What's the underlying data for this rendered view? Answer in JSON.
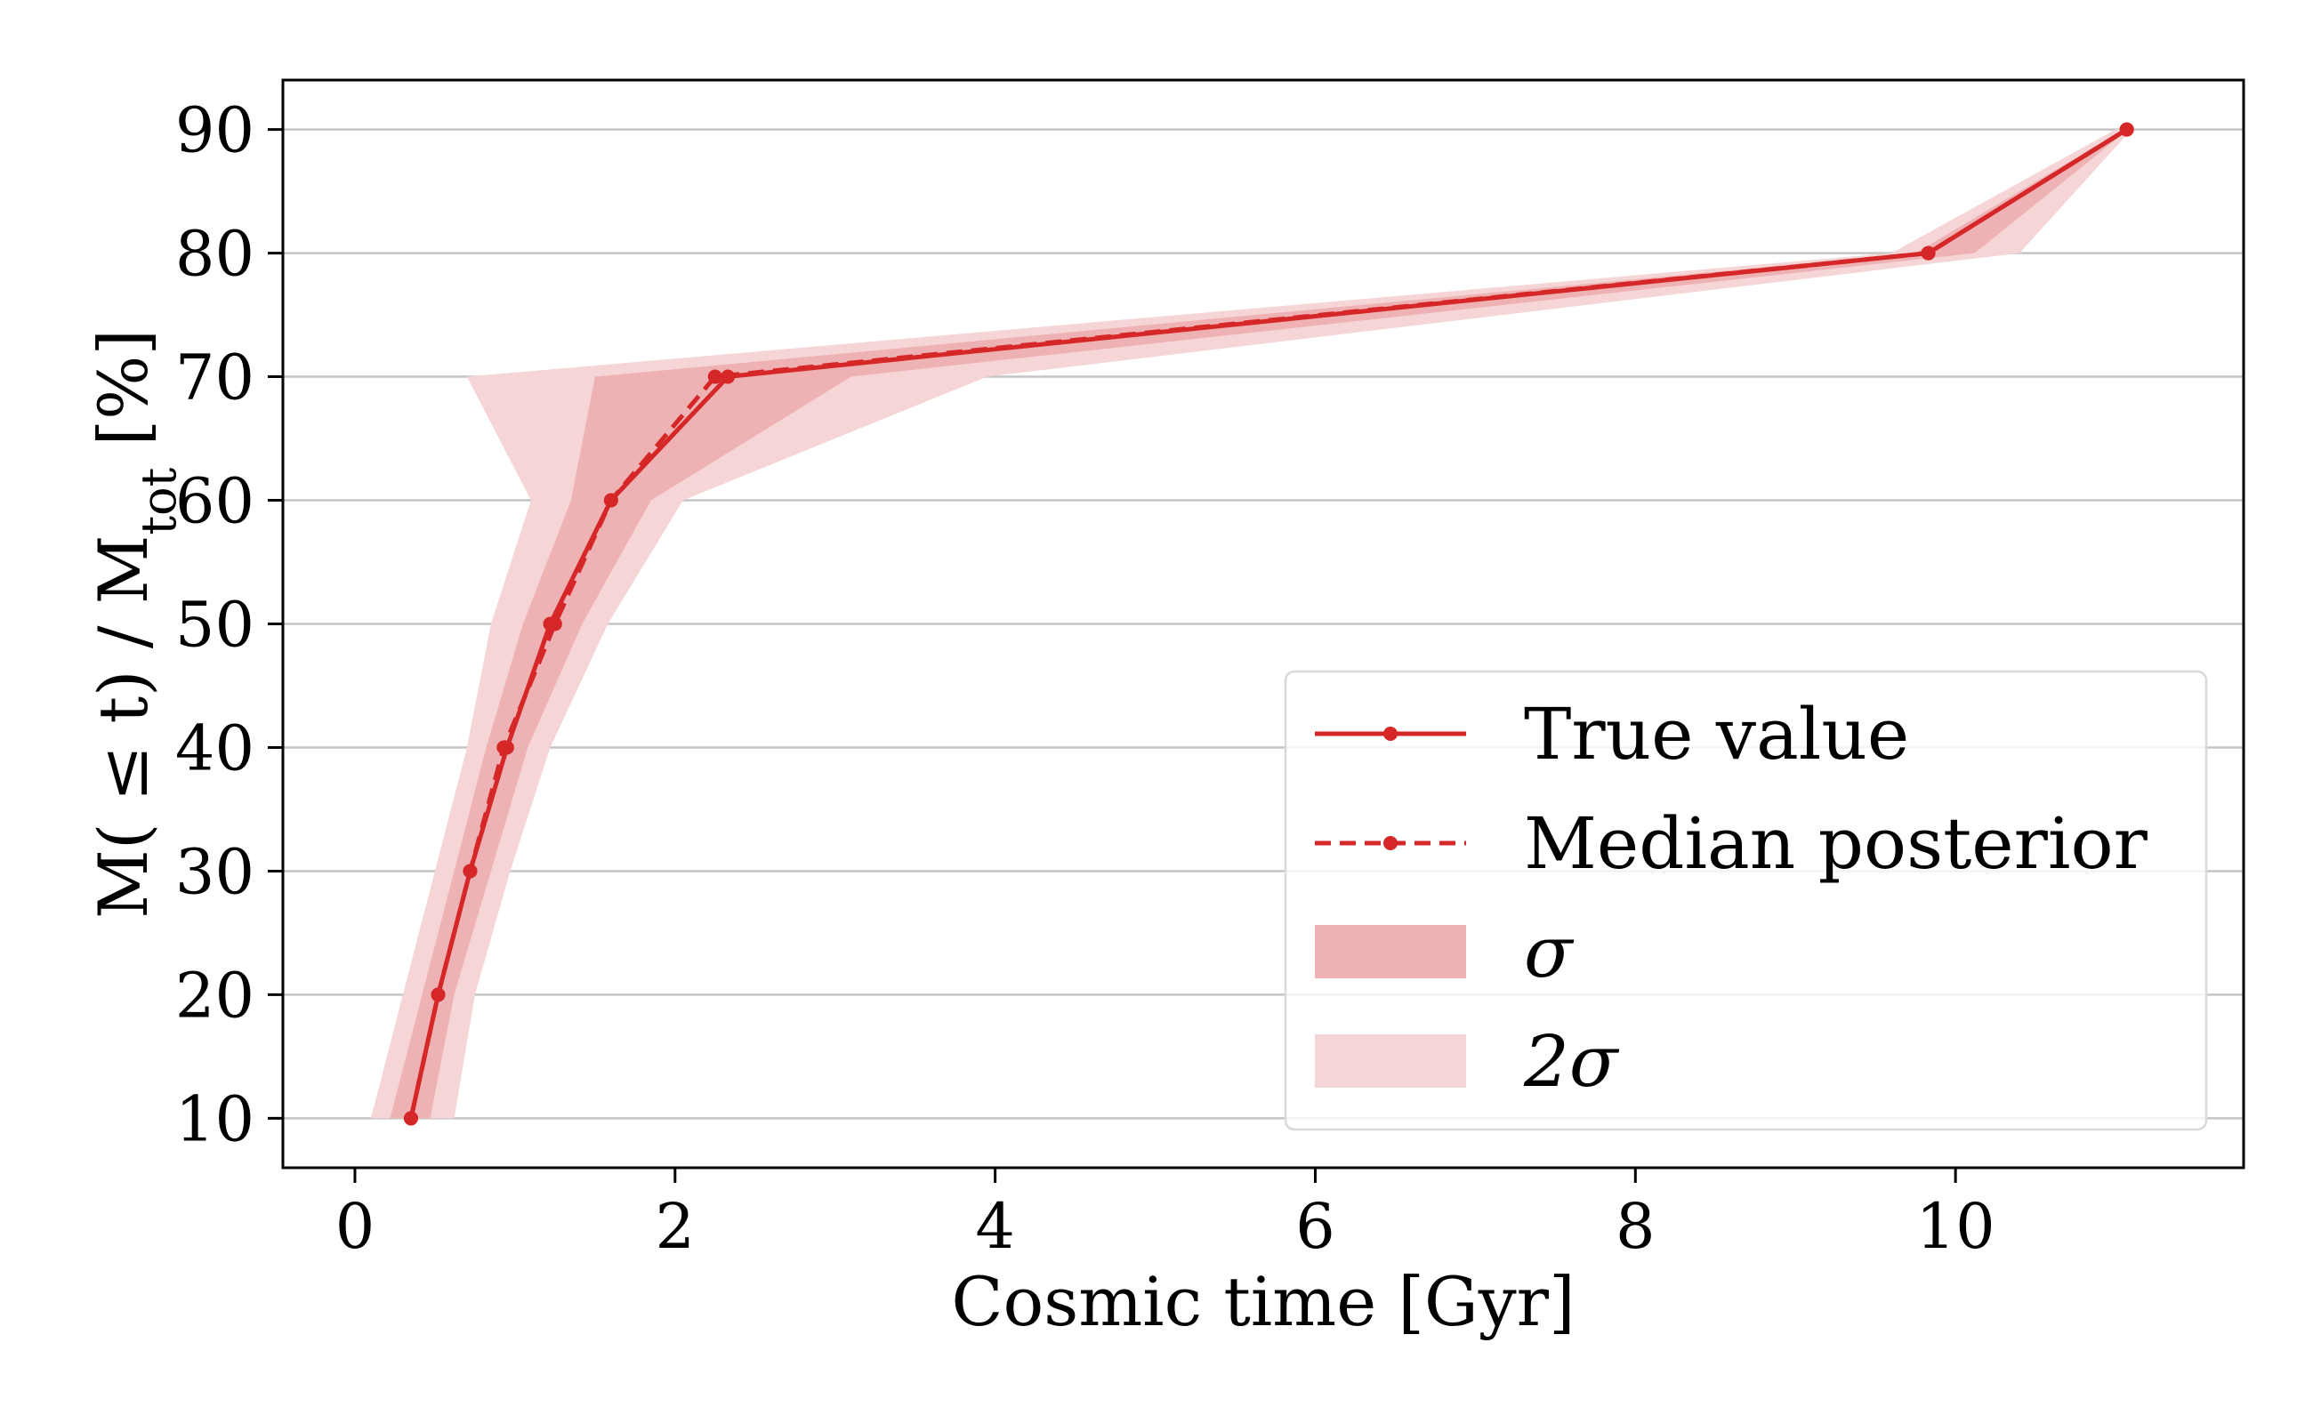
{
  "chart_data": {
    "type": "line",
    "xlabel": "Cosmic time [Gyr]",
    "ylabel": {
      "prefix": "M( ≤ t) / M",
      "subscript": "tot",
      "suffix": " [%]"
    },
    "xlim": [
      -0.45,
      11.8
    ],
    "ylim": [
      6,
      94
    ],
    "xticks": [
      0,
      2,
      4,
      6,
      8,
      10
    ],
    "yticks": [
      10,
      20,
      30,
      40,
      50,
      60,
      70,
      80,
      90
    ],
    "y_grid": true,
    "legend_position": "lower-right",
    "color": "#d62728",
    "series": [
      {
        "name": "True value",
        "style": "solid",
        "points": [
          {
            "x": 0.35,
            "y": 10
          },
          {
            "x": 0.52,
            "y": 20
          },
          {
            "x": 0.72,
            "y": 30
          },
          {
            "x": 0.95,
            "y": 40
          },
          {
            "x": 1.22,
            "y": 50
          },
          {
            "x": 1.6,
            "y": 60
          },
          {
            "x": 2.33,
            "y": 70
          },
          {
            "x": 9.83,
            "y": 80
          },
          {
            "x": 11.07,
            "y": 90
          }
        ]
      },
      {
        "name": "Median posterior",
        "style": "dashed",
        "points": [
          {
            "x": 0.35,
            "y": 10
          },
          {
            "x": 0.52,
            "y": 20
          },
          {
            "x": 0.72,
            "y": 30
          },
          {
            "x": 0.93,
            "y": 40
          },
          {
            "x": 1.25,
            "y": 50
          },
          {
            "x": 1.6,
            "y": 60
          },
          {
            "x": 2.25,
            "y": 70
          },
          {
            "x": 9.83,
            "y": 80
          },
          {
            "x": 11.07,
            "y": 90
          }
        ]
      }
    ],
    "bands": [
      {
        "name": "2σ",
        "color": "#f5d5d6",
        "y": [
          10,
          20,
          30,
          40,
          50,
          60,
          70,
          80,
          90
        ],
        "lower": [
          0.1,
          0.3,
          0.5,
          0.7,
          0.85,
          1.1,
          0.7,
          9.6,
          11.0
        ],
        "upper": [
          0.62,
          0.75,
          0.97,
          1.22,
          1.58,
          2.05,
          3.95,
          10.4,
          11.1
        ]
      },
      {
        "name": "σ",
        "color": "#efb2b4",
        "y": [
          10,
          20,
          30,
          40,
          50,
          60,
          70,
          80,
          90
        ],
        "lower": [
          0.22,
          0.42,
          0.62,
          0.82,
          1.05,
          1.35,
          1.5,
          9.75,
          11.05
        ],
        "upper": [
          0.47,
          0.62,
          0.85,
          1.08,
          1.42,
          1.85,
          3.1,
          10.12,
          11.08
        ]
      }
    ],
    "legend": [
      {
        "label_key": "True value",
        "kind": "solid-line"
      },
      {
        "label_key": "Median posterior",
        "kind": "dashed-line"
      },
      {
        "label_key": "σ",
        "kind": "band",
        "color": "#efb2b4"
      },
      {
        "label_key": "2σ",
        "kind": "band",
        "color": "#f5d5d6"
      }
    ]
  }
}
